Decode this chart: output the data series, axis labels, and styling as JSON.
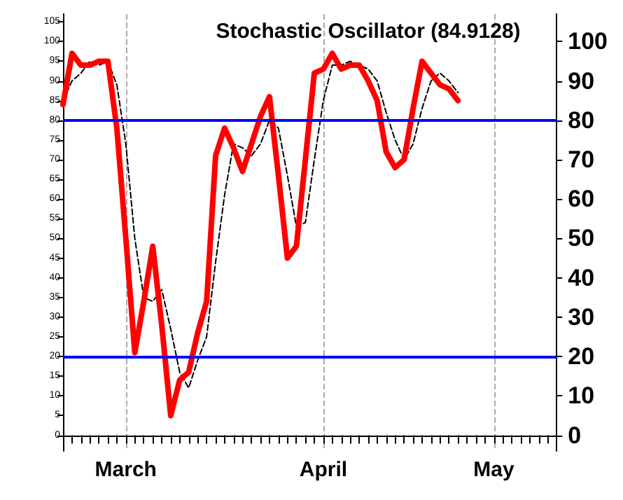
{
  "chart_data": {
    "type": "line",
    "title": "Stochastic Oscillator (84.9128)",
    "categories": [
      null,
      null,
      null,
      null,
      null,
      null,
      null,
      "March",
      null,
      null,
      null,
      null,
      null,
      null,
      null,
      null,
      null,
      null,
      null,
      null,
      null,
      null,
      null,
      null,
      null,
      null,
      null,
      null,
      null,
      "April",
      null,
      null,
      null,
      null,
      null,
      null,
      null,
      null,
      null,
      null,
      null,
      null,
      null,
      null,
      null,
      null,
      null,
      null,
      "May",
      null,
      null,
      null,
      null,
      null,
      null,
      null
    ],
    "series": [
      {
        "color": "#ff0000",
        "line_style": "solid",
        "values": [
          84,
          97,
          94,
          94,
          95,
          95,
          78,
          50,
          21,
          34,
          48,
          28,
          5,
          14,
          16,
          26,
          34,
          71,
          78,
          73,
          67,
          74,
          81,
          86,
          66,
          45,
          48,
          70,
          92,
          93,
          97,
          93,
          94,
          94,
          90,
          85,
          72,
          68,
          70,
          83,
          95,
          92,
          89,
          88,
          85,
          null,
          null,
          null,
          null,
          null,
          null,
          null,
          null,
          null,
          null,
          null
        ]
      },
      {
        "color": "#000000",
        "line_style": "dashed",
        "values": [
          85,
          90,
          92,
          95,
          94,
          95,
          89,
          74,
          50,
          35,
          34,
          37,
          27,
          16,
          12,
          19,
          25,
          44,
          61,
          74,
          73,
          71,
          74,
          80,
          78,
          66,
          53,
          54,
          70,
          85,
          94,
          94,
          95,
          94,
          93,
          90,
          82,
          75,
          70,
          74,
          83,
          90,
          92,
          90,
          87,
          null,
          null,
          null,
          null,
          null,
          null,
          null,
          null,
          null,
          null,
          null
        ]
      }
    ],
    "ylim": [
      -4,
      107
    ],
    "yticks": [
      0,
      5,
      10,
      15,
      20,
      25,
      30,
      35,
      40,
      45,
      50,
      55,
      60,
      65,
      70,
      75,
      80,
      85,
      90,
      95,
      100,
      105
    ],
    "y2lim": [
      -4,
      107
    ],
    "y2ticks": [
      0,
      10,
      20,
      30,
      40,
      50,
      60,
      70,
      80,
      90,
      100
    ],
    "ref_lines": [
      {
        "axis": "y",
        "value": 20,
        "color": "#0000ff"
      },
      {
        "axis": "y",
        "value": 80,
        "color": "#0000ff"
      }
    ],
    "grid": "x",
    "marker": "none"
  }
}
